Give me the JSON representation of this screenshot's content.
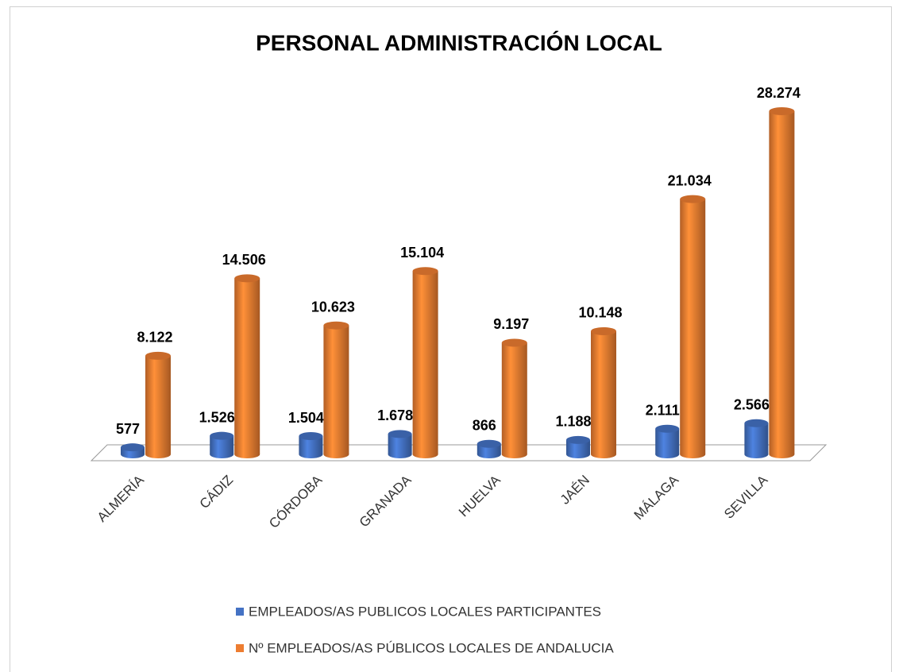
{
  "chart_data": {
    "type": "bar3d",
    "title": "PERSONAL ADMINISTRACIÓN LOCAL",
    "categories": [
      "ALMERÍA",
      "CÁDIZ",
      "CÓRDOBA",
      "GRANADA",
      "HUELVA",
      "JAÉN",
      "MÁLAGA",
      "SEVILLA"
    ],
    "series": [
      {
        "name": "EMPLEADOS/AS PUBLICOS LOCALES PARTICIPANTES",
        "color": "#4472c4",
        "values": [
          577,
          1526,
          1504,
          1678,
          866,
          1188,
          2111,
          2566
        ],
        "value_labels": [
          "577",
          "1.526",
          "1.504",
          "1.678",
          "866",
          "1.188",
          "2.111",
          "2.566"
        ]
      },
      {
        "name": "Nº EMPLEADOS/AS PÚBLICOS LOCALES DE ANDALUCIA",
        "color": "#ed7d31",
        "values": [
          8122,
          14506,
          10623,
          15104,
          9197,
          10148,
          21034,
          28274
        ],
        "value_labels": [
          "8.122",
          "14.506",
          "10.623",
          "15.104",
          "9.197",
          "10.148",
          "21.034",
          "28.274"
        ]
      }
    ],
    "legend": "bottom"
  }
}
